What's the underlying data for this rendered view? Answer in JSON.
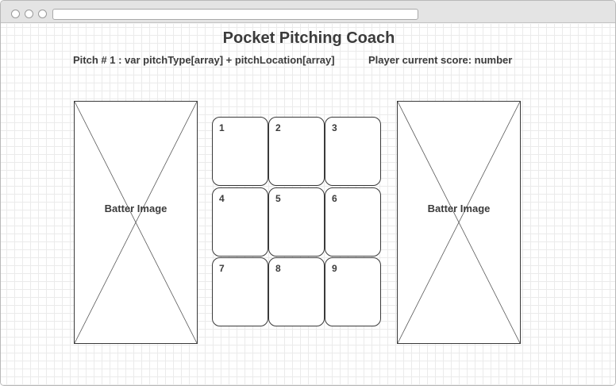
{
  "app": {
    "title": "Pocket Pitching Coach"
  },
  "header": {
    "pitch_info": "Pitch # 1 : var pitchType[array] + pitchLocation[array]",
    "score_info": "Player current score: number"
  },
  "batters": {
    "left_label": "Batter Image",
    "right_label": "Batter Image"
  },
  "strike_zone": {
    "cells": [
      "1",
      "2",
      "3",
      "4",
      "5",
      "6",
      "7",
      "8",
      "9"
    ]
  },
  "colors": {
    "text": "#3b3b3b",
    "border": "#3a3a3a",
    "grid": "#ebebeb"
  }
}
